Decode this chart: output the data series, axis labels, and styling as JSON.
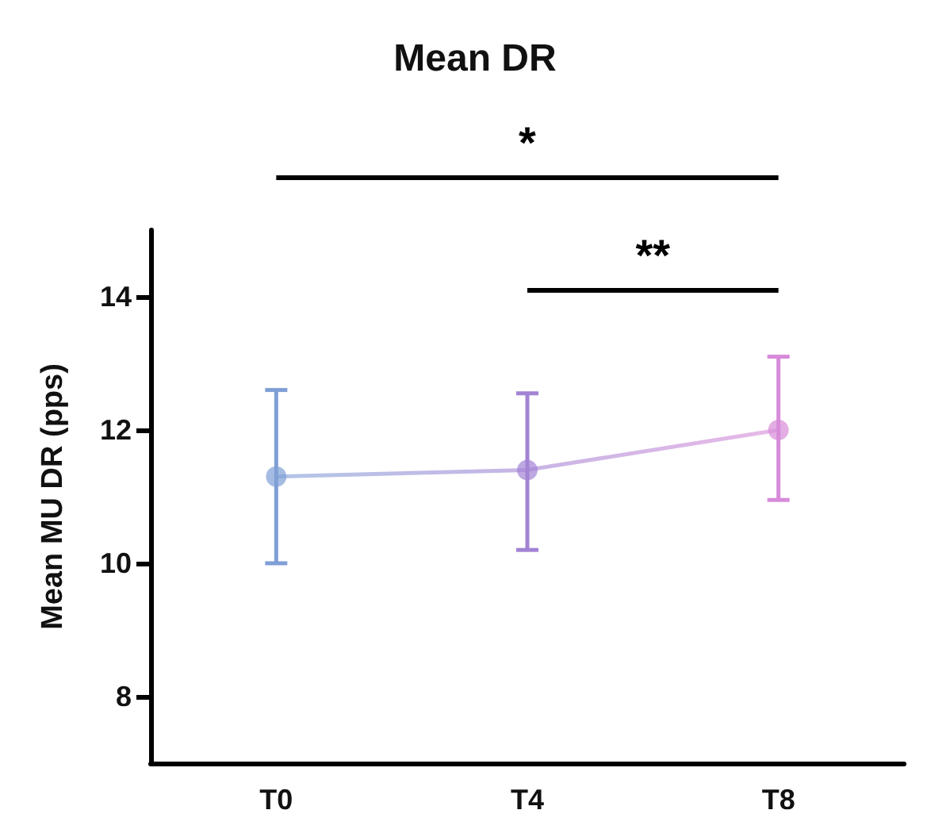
{
  "chart_data": {
    "type": "line",
    "title": "Mean DR",
    "ylabel": "Mean MU DR (pps)",
    "categories": [
      "T0",
      "T4",
      "T8"
    ],
    "series": [
      {
        "colors": [
          "#7f9fd6",
          "#a383d4",
          "#d78bd9"
        ],
        "values": [
          11.3,
          11.4,
          12.0
        ],
        "errors": [
          [
            10.0,
            12.6
          ],
          [
            10.2,
            12.55
          ],
          [
            10.95,
            13.1
          ]
        ]
      }
    ],
    "ylim": [
      7,
      15
    ],
    "yticks": [
      8,
      10,
      12,
      14
    ],
    "grid": false,
    "marker": "circle",
    "annotations": [
      "*",
      "**"
    ]
  }
}
